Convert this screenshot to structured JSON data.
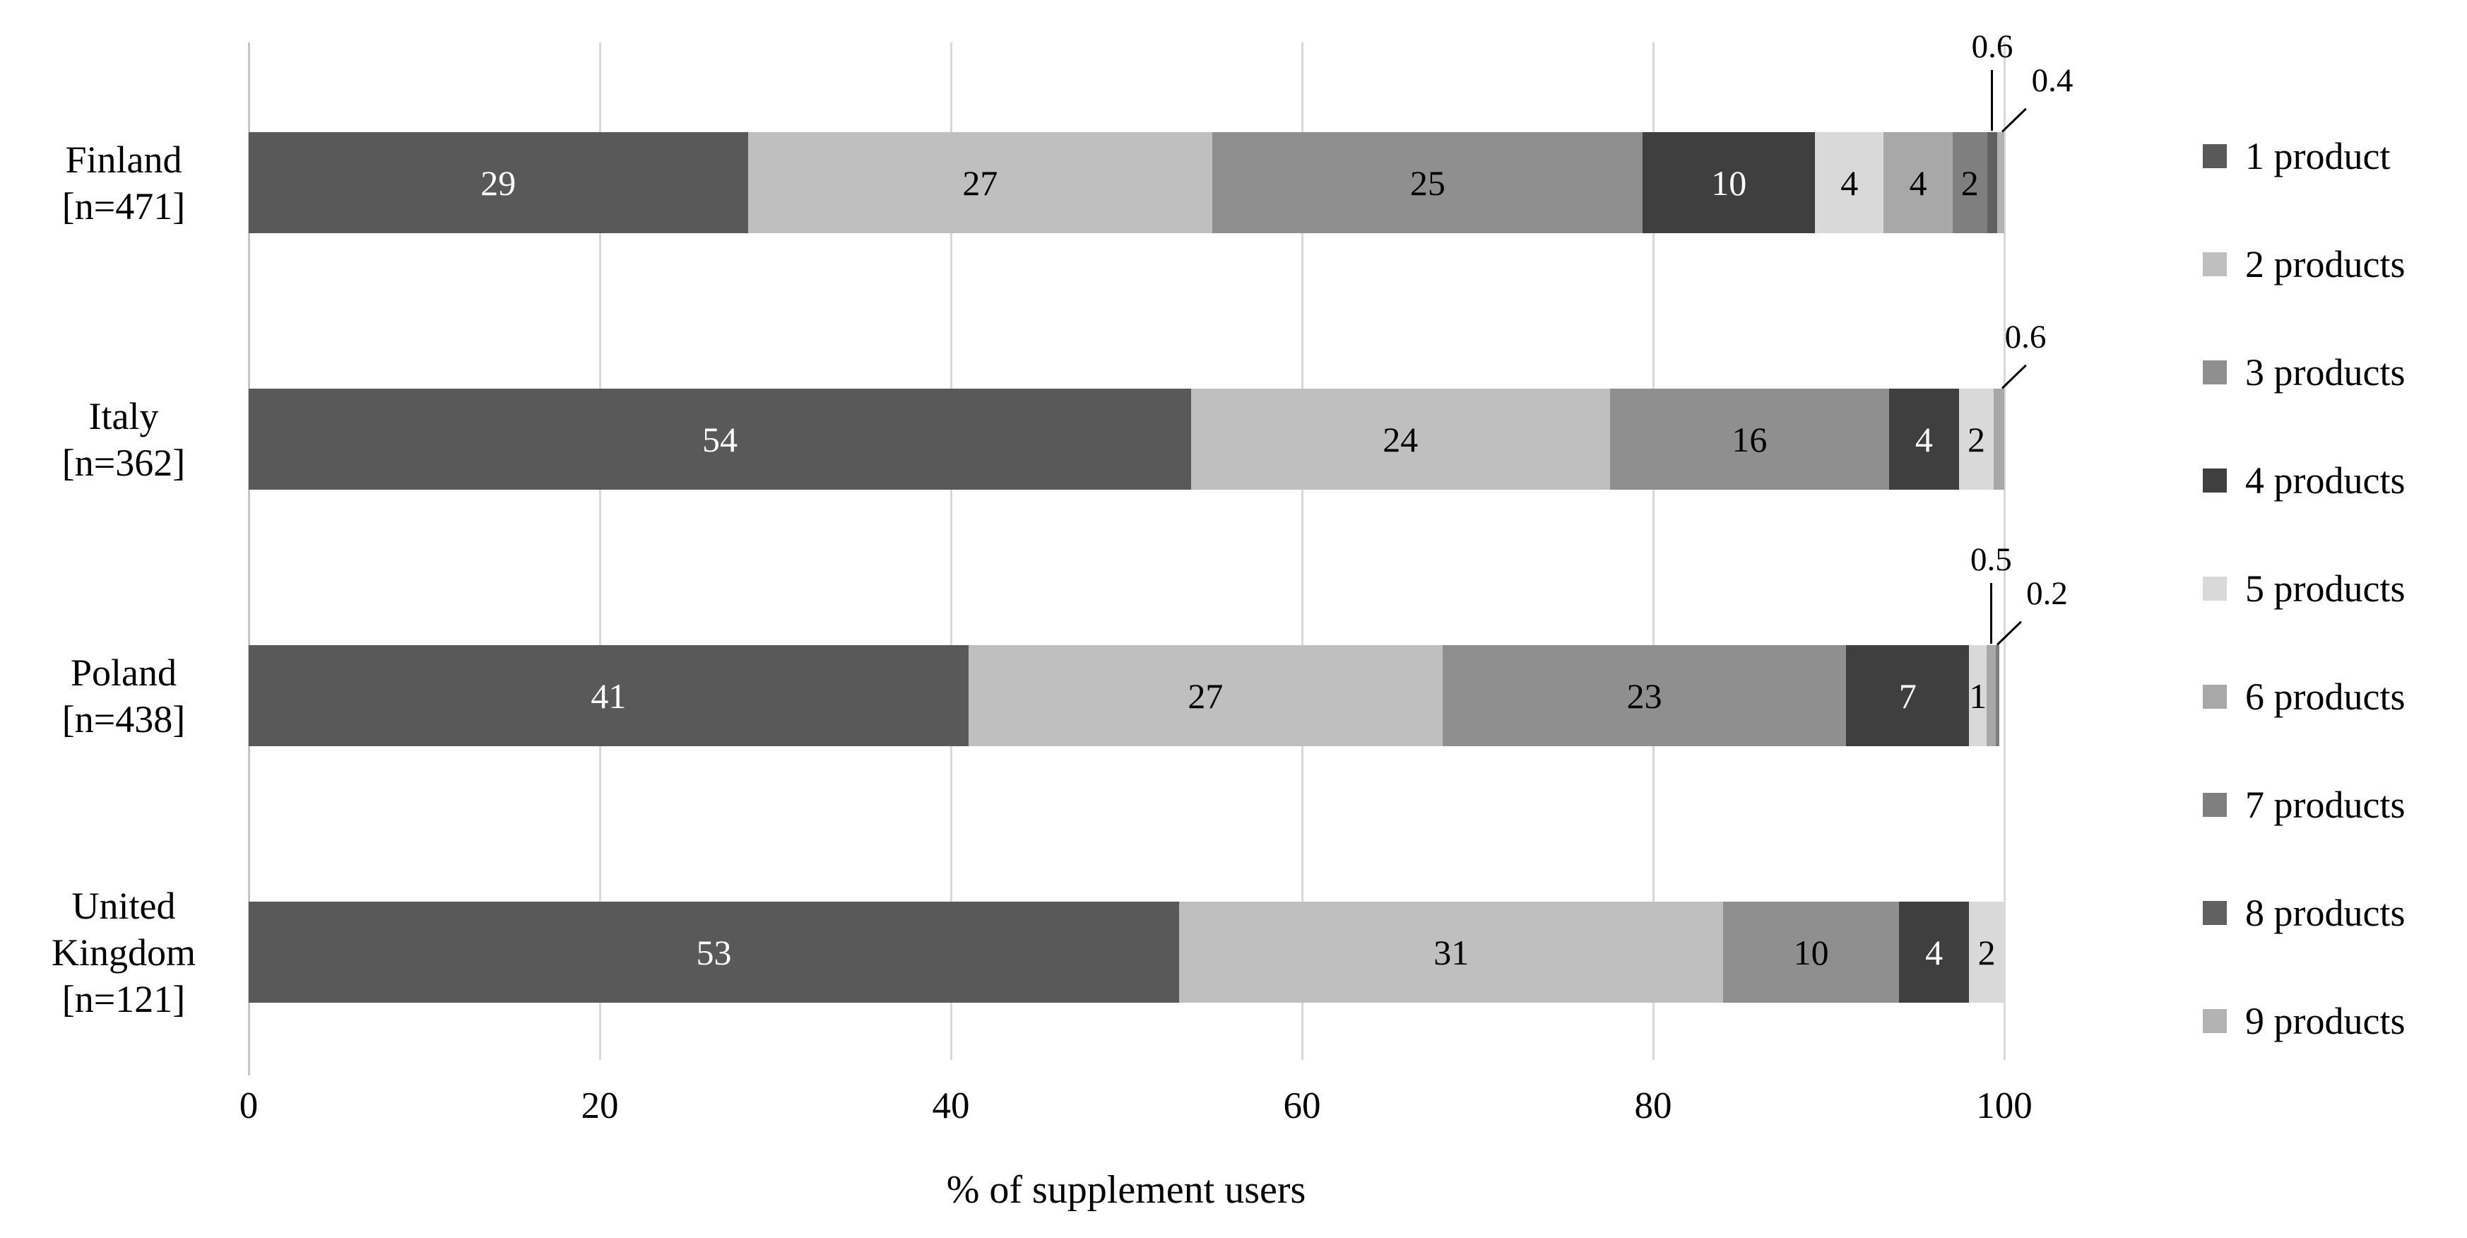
{
  "chart_data": {
    "type": "bar",
    "variant": "horizontal-stacked",
    "title": "",
    "xlabel": "% of supplement users",
    "ylabel": "",
    "xlim": [
      0,
      100
    ],
    "x_ticks": [
      0,
      20,
      40,
      60,
      80,
      100
    ],
    "grid": true,
    "legend_position": "right",
    "series_labels": [
      "1 product",
      "2 products",
      "3 products",
      "4 products",
      "5 products",
      "6 products",
      "7 products",
      "8 products",
      "9 products"
    ],
    "series_colors": [
      "#595959",
      "#bfbfbf",
      "#8f8f8f",
      "#3f3f3f",
      "#d9d9d9",
      "#a8a8a8",
      "#7f7f7f",
      "#616161",
      "#b3b3b3"
    ],
    "categories": [
      {
        "label_lines": [
          "Finland",
          "[n=471]"
        ],
        "country": "Finland",
        "n": 471,
        "values": [
          29,
          27,
          25,
          10,
          4,
          4,
          2,
          0.6,
          0.4
        ],
        "callouts": {
          "7": "above",
          "8": "diag"
        }
      },
      {
        "label_lines": [
          "Italy",
          "[n=362]"
        ],
        "country": "Italy",
        "n": 362,
        "values": [
          54,
          24,
          16,
          4,
          2,
          0.6
        ],
        "callouts": {
          "5": "diag"
        }
      },
      {
        "label_lines": [
          "Poland",
          "[n=438]"
        ],
        "country": "Poland",
        "n": 438,
        "values": [
          41,
          27,
          23,
          7,
          1,
          0.5,
          0.2
        ],
        "callouts": {
          "5": "above",
          "6": "diag"
        }
      },
      {
        "label_lines": [
          "United",
          "Kingdom",
          "[n=121]"
        ],
        "country": "United Kingdom",
        "n": 121,
        "values": [
          53,
          31,
          10,
          4,
          2
        ],
        "callouts": {}
      }
    ],
    "colors": {
      "background": "#ffffff",
      "gridline": "#d9d9d9",
      "axis_line": "#c6c6c6",
      "label_dark": "#000000",
      "label_light": "#ffffff",
      "leader_line": "#000000"
    }
  }
}
